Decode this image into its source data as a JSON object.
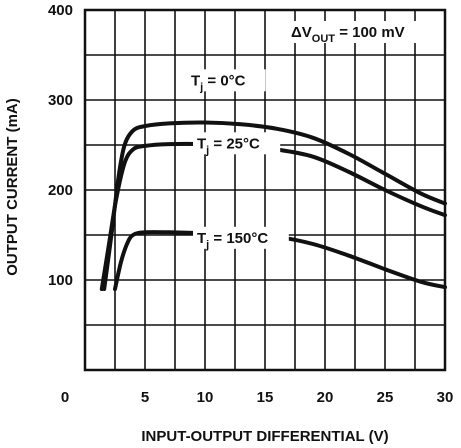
{
  "chart_data": {
    "type": "line",
    "title": "",
    "xlabel": "INPUT-OUTPUT DIFFERENTIAL (V)",
    "ylabel": "OUTPUT CURRENT (mA)",
    "xlim": [
      0,
      30
    ],
    "ylim": [
      0,
      400
    ],
    "x_ticks": [
      0,
      5,
      10,
      15,
      20,
      25,
      30
    ],
    "y_ticks": [
      100,
      200,
      300,
      400
    ],
    "grid": true,
    "annotation": {
      "main": "ΔV",
      "sub": "OUT",
      "rest": " = 100 mV"
    },
    "series": [
      {
        "name": "Tj = 0°C",
        "label_main": "T",
        "label_sub": "j",
        "label_rest": " = 0°C",
        "x": [
          1.6,
          2.2,
          2.8,
          3.3,
          4.0,
          5.0,
          7.0,
          10.0,
          13.0,
          16.0,
          19.0,
          22.0,
          25.0,
          28.0,
          30.0
        ],
        "y": [
          90,
          150,
          215,
          250,
          266,
          271,
          274,
          275,
          273,
          268,
          258,
          240,
          218,
          196,
          185
        ]
      },
      {
        "name": "Tj = 25°C",
        "label_main": "T",
        "label_sub": "j",
        "label_rest": " = 25°C",
        "x": [
          1.4,
          2.0,
          2.6,
          3.3,
          4.0,
          5.0,
          7.0,
          10.0,
          13.0,
          16.0,
          19.0,
          22.0,
          25.0,
          28.0,
          30.0
        ],
        "y": [
          90,
          140,
          190,
          230,
          245,
          249,
          251,
          251,
          249,
          245,
          237,
          220,
          200,
          182,
          172
        ]
      },
      {
        "name": "Tj = 150°C",
        "label_main": "T",
        "label_sub": "j",
        "label_rest": " = 150°C",
        "x": [
          2.5,
          3.0,
          3.5,
          4.0,
          5.0,
          7.0,
          10.0,
          13.0,
          16.0,
          19.0,
          22.0,
          25.0,
          28.0,
          30.0
        ],
        "y": [
          90,
          120,
          140,
          150,
          153,
          153,
          152,
          151,
          148,
          140,
          127,
          112,
          98,
          92
        ]
      }
    ]
  }
}
